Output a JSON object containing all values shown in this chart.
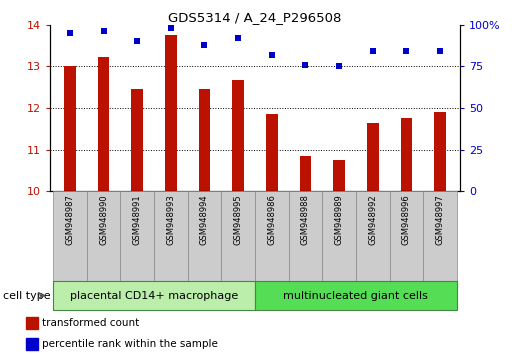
{
  "title": "GDS5314 / A_24_P296508",
  "samples": [
    "GSM948987",
    "GSM948990",
    "GSM948991",
    "GSM948993",
    "GSM948994",
    "GSM948995",
    "GSM948986",
    "GSM948988",
    "GSM948989",
    "GSM948992",
    "GSM948996",
    "GSM948997"
  ],
  "transformed_count": [
    13.0,
    13.22,
    12.45,
    13.75,
    12.45,
    12.67,
    11.85,
    10.85,
    10.75,
    11.65,
    11.75,
    11.9
  ],
  "percentile_rank": [
    95,
    96,
    90,
    98,
    88,
    92,
    82,
    76,
    75,
    84,
    84,
    84
  ],
  "group1_label": "placental CD14+ macrophage",
  "group2_label": "multinucleated giant cells",
  "group1_count": 6,
  "group2_count": 6,
  "bar_color": "#bb1100",
  "dot_color": "#0000cc",
  "ylim_left": [
    10,
    14
  ],
  "ylim_right": [
    0,
    100
  ],
  "yticks_left": [
    10,
    11,
    12,
    13,
    14
  ],
  "yticks_right": [
    0,
    25,
    50,
    75,
    100
  ],
  "bar_width": 0.35,
  "group1_bg": "#bbeeaa",
  "group2_bg": "#55dd55",
  "sample_bg": "#cccccc",
  "legend_red_label": "transformed count",
  "legend_blue_label": "percentile rank within the sample",
  "cell_type_label": "cell type"
}
